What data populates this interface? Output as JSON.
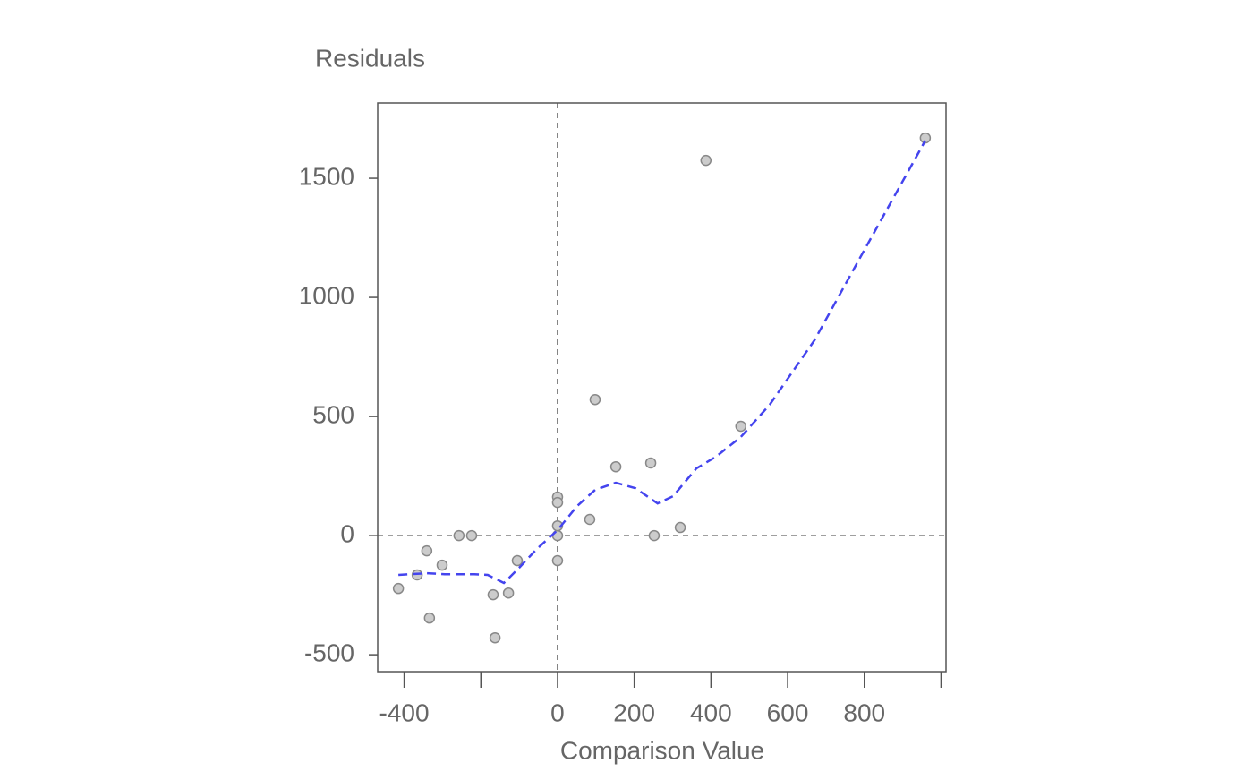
{
  "chart_data": {
    "type": "scatter",
    "x_label": "Comparison Value",
    "y_label": "Residuals",
    "xlim": [
      -469,
      1013
    ],
    "ylim": [
      -571,
      1816
    ],
    "xticks": [
      -400,
      {
        "value": -200,
        "label": null
      },
      0,
      200,
      400,
      600,
      800,
      {
        "value": 1000,
        "label": null
      }
    ],
    "yticks": [
      -500,
      0,
      500,
      1000,
      1500
    ],
    "vlines": [
      0
    ],
    "hlines": [
      0
    ],
    "series": [
      {
        "type": "scatter",
        "color": "#cccccc",
        "x": [
          -415,
          -366,
          -341,
          -334,
          -301,
          -257,
          -224,
          -168,
          -163,
          -128,
          -105,
          0,
          0,
          0,
          0,
          0,
          84,
          98,
          152,
          243,
          252,
          320,
          387,
          478,
          959
        ],
        "values": [
          -222,
          -165,
          -64,
          -346,
          -124,
          0,
          0,
          -248,
          -429,
          -241,
          -105,
          162,
          139,
          41,
          0,
          -105,
          68,
          571,
          289,
          305,
          0,
          34,
          1575,
          459,
          1669
        ]
      },
      {
        "type": "line",
        "color": "#4444ee",
        "x": [
          -415,
          -341,
          -294,
          -217,
          -182,
          -140,
          -100,
          -54,
          0,
          51,
          98,
          152,
          203,
          261,
          301,
          362,
          413,
          478,
          553,
          670,
          786,
          959
        ],
        "values": [
          -165,
          -158,
          -162,
          -162,
          -165,
          -199,
          -135,
          -56,
          23,
          124,
          192,
          222,
          199,
          135,
          165,
          282,
          331,
          414,
          549,
          820,
          1158,
          1658
        ]
      }
    ]
  }
}
